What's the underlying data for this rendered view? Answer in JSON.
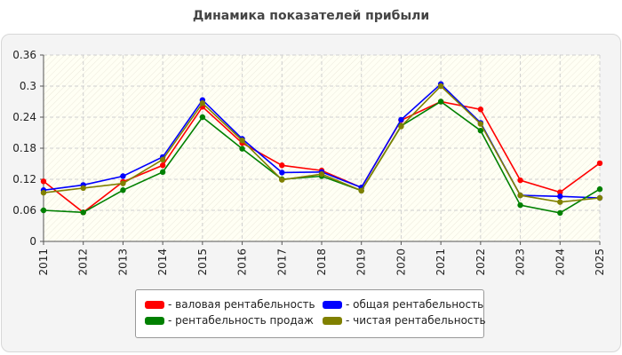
{
  "title": "Динамика показателей прибыли",
  "chart_data": {
    "type": "line",
    "title": "Динамика показателей прибыли",
    "x": [
      "2011",
      "2012",
      "2013",
      "2014",
      "2015",
      "2016",
      "2017",
      "2018",
      "2019",
      "2020",
      "2021",
      "2022",
      "2023",
      "2024",
      "2025"
    ],
    "ylim": [
      0,
      0.36
    ],
    "yticks": [
      "0",
      "0.06",
      "0.12",
      "0.18",
      "0.24",
      "0.3",
      "0.36"
    ],
    "grid": true,
    "legend_position": "bottom",
    "series": [
      {
        "name": "- валовая рентабельность",
        "color": "#ff0000",
        "values": [
          0.116,
          0.056,
          0.115,
          0.147,
          0.26,
          0.19,
          0.147,
          0.137,
          0.104,
          0.234,
          0.27,
          0.255,
          0.118,
          0.095,
          0.151
        ]
      },
      {
        "name": "- общая рентабельность",
        "color": "#0000ff",
        "values": [
          0.099,
          0.109,
          0.126,
          0.163,
          0.273,
          0.198,
          0.133,
          0.134,
          0.104,
          0.235,
          0.304,
          0.229,
          0.089,
          0.087,
          0.084
        ]
      },
      {
        "name": "- рентабельность продаж",
        "color": "#008000",
        "values": [
          0.06,
          0.056,
          0.099,
          0.134,
          0.24,
          0.179,
          0.12,
          0.126,
          0.098,
          0.223,
          0.27,
          0.214,
          0.07,
          0.055,
          0.101
        ]
      },
      {
        "name": "- чистая рентабельность",
        "color": "#808000",
        "values": [
          0.094,
          0.103,
          0.112,
          0.158,
          0.267,
          0.195,
          0.119,
          0.13,
          0.098,
          0.222,
          0.3,
          0.227,
          0.089,
          0.076,
          0.084
        ]
      }
    ]
  }
}
